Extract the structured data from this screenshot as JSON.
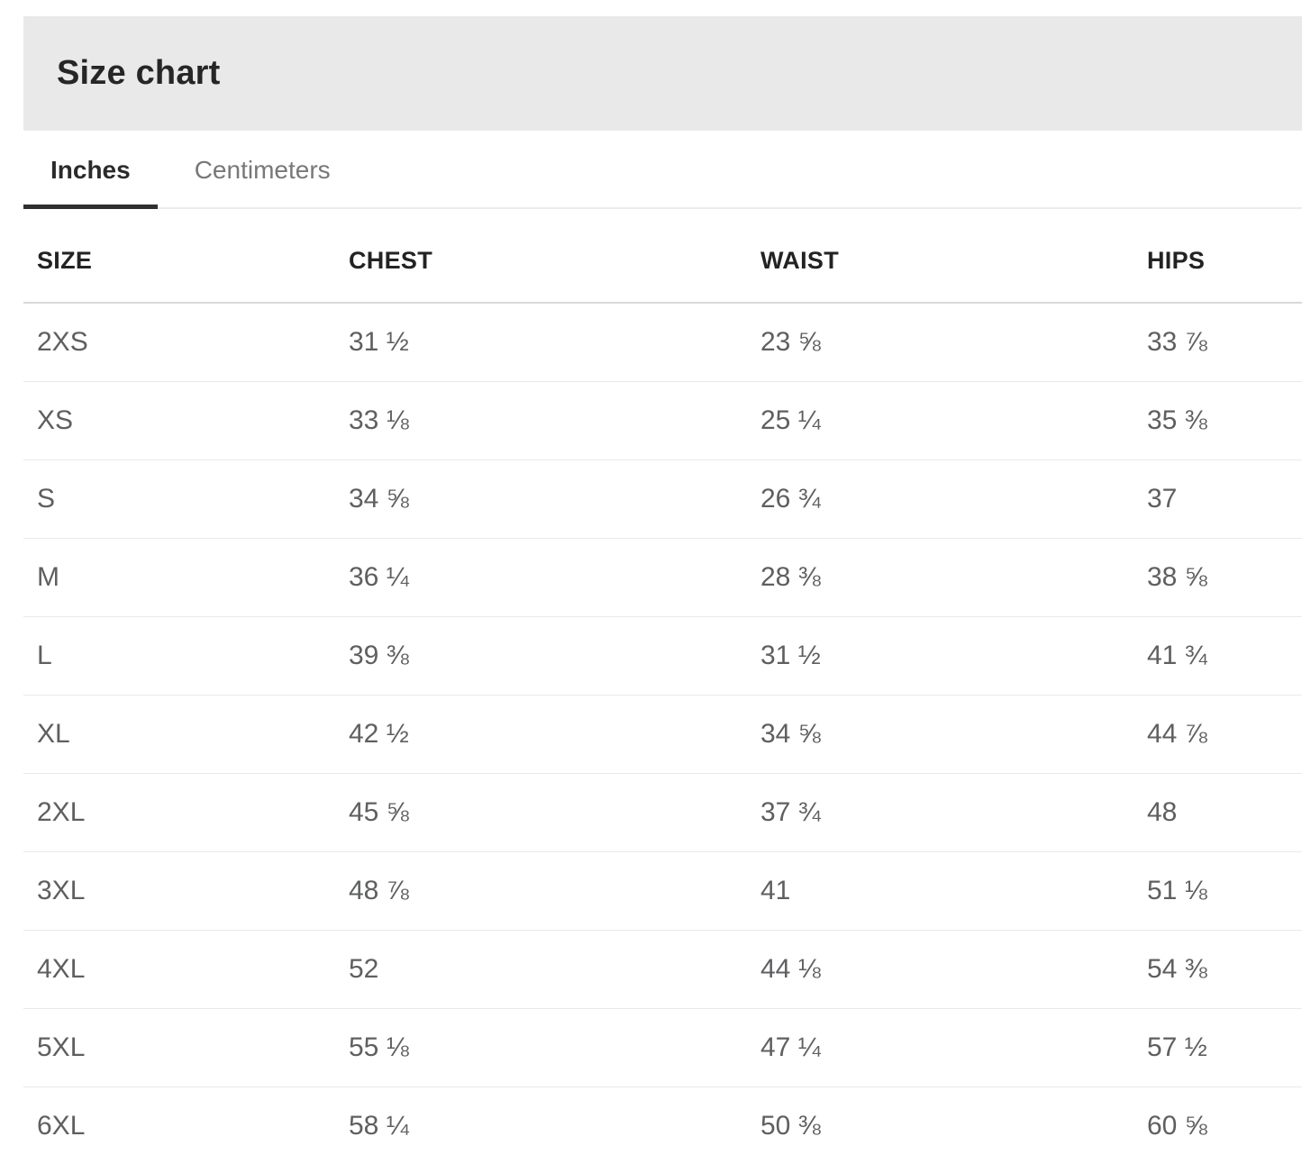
{
  "header": {
    "title": "Size chart"
  },
  "tabs": [
    {
      "label": "Inches",
      "active": true
    },
    {
      "label": "Centimeters",
      "active": false
    }
  ],
  "table": {
    "columns": [
      "SIZE",
      "CHEST",
      "WAIST",
      "HIPS"
    ],
    "unit": "inches",
    "rows": [
      {
        "size": "2XS",
        "chest": "31 ½",
        "waist": "23 ⅝",
        "hips": "33 ⅞"
      },
      {
        "size": "XS",
        "chest": "33 ⅛",
        "waist": "25 ¼",
        "hips": "35 ⅜"
      },
      {
        "size": "S",
        "chest": "34 ⅝",
        "waist": "26 ¾",
        "hips": "37"
      },
      {
        "size": "M",
        "chest": "36 ¼",
        "waist": "28 ⅜",
        "hips": "38 ⅝"
      },
      {
        "size": "L",
        "chest": "39 ⅜",
        "waist": "31 ½",
        "hips": "41 ¾"
      },
      {
        "size": "XL",
        "chest": "42 ½",
        "waist": "34 ⅝",
        "hips": "44 ⅞"
      },
      {
        "size": "2XL",
        "chest": "45 ⅝",
        "waist": "37 ¾",
        "hips": "48"
      },
      {
        "size": "3XL",
        "chest": "48 ⅞",
        "waist": "41",
        "hips": "51 ⅛"
      },
      {
        "size": "4XL",
        "chest": "52",
        "waist": "44 ⅛",
        "hips": "54 ⅜"
      },
      {
        "size": "5XL",
        "chest": "55 ⅛",
        "waist": "47 ¼",
        "hips": "57 ½"
      },
      {
        "size": "6XL",
        "chest": "58 ¼",
        "waist": "50 ⅜",
        "hips": "60 ⅝"
      }
    ]
  },
  "colors": {
    "header_background": "#e9e9e9",
    "title_text": "#262626",
    "active_tab_text": "#2b2b2b",
    "active_tab_underline": "#2f2f2f",
    "inactive_tab_text": "#77787a",
    "column_header_text": "#232323",
    "cell_text": "#5e5f61",
    "header_border": "#d9d9d9",
    "row_border": "#e9e9e9",
    "tab_divider": "#ebebeb"
  }
}
